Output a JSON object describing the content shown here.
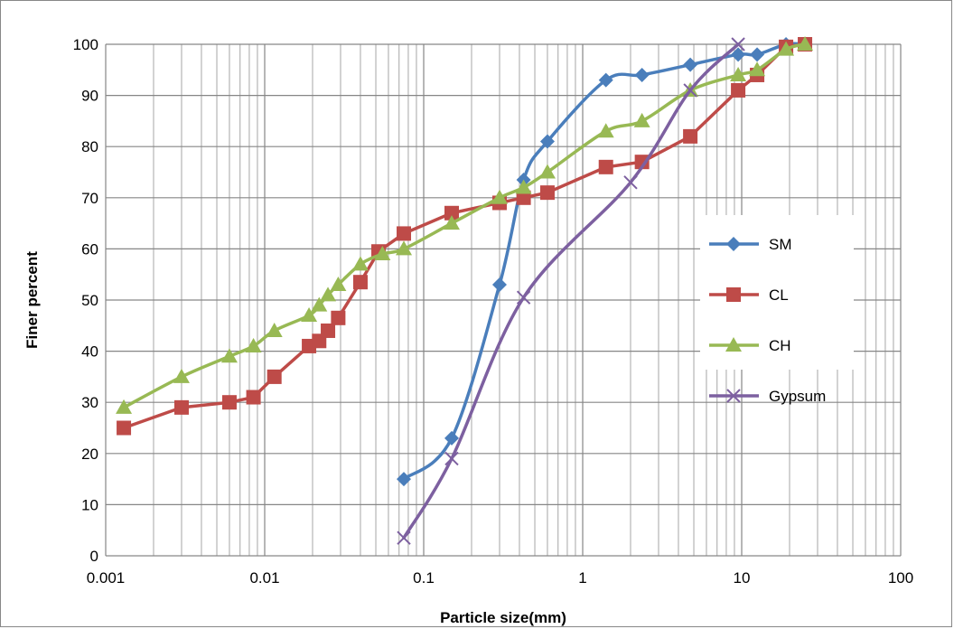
{
  "chart_data": {
    "type": "line",
    "x_scale": "log",
    "xlim": [
      0.001,
      100
    ],
    "ylim": [
      0,
      100
    ],
    "x_ticks": [
      0.001,
      0.01,
      0.1,
      1,
      10,
      100
    ],
    "x_tick_labels": [
      "0.001",
      "0.01",
      "0.1",
      "1",
      "10",
      "100"
    ],
    "y_ticks": [
      0,
      10,
      20,
      30,
      40,
      50,
      60,
      70,
      80,
      90,
      100
    ],
    "y_tick_labels": [
      "0",
      "10",
      "20",
      "30",
      "40",
      "50",
      "60",
      "70",
      "80",
      "90",
      "100"
    ],
    "xlabel": "Particle size(mm)",
    "ylabel": "Finer percent",
    "grid": true,
    "legend_position": "right",
    "series": [
      {
        "name": "SM",
        "color": "#4a7ebb",
        "marker": "diamond",
        "x": [
          0.075,
          0.15,
          0.3,
          0.425,
          0.6,
          1.4,
          2.36,
          4.75,
          9.5,
          12.5,
          19,
          25
        ],
        "y": [
          15,
          23,
          53,
          73.5,
          81,
          93,
          94,
          96,
          98,
          98,
          100,
          100
        ]
      },
      {
        "name": "CL",
        "color": "#be4b48",
        "marker": "square",
        "x": [
          0.0013,
          0.003,
          0.006,
          0.0085,
          0.0115,
          0.019,
          0.022,
          0.025,
          0.029,
          0.04,
          0.052,
          0.075,
          0.15,
          0.3,
          0.425,
          0.6,
          1.4,
          2.36,
          4.75,
          9.5,
          12.5,
          19,
          25
        ],
        "y": [
          25,
          29,
          30,
          31,
          35,
          41,
          42,
          44,
          46.5,
          53.5,
          59.5,
          63,
          67,
          69,
          70,
          71,
          76,
          77,
          82,
          91,
          94,
          99.5,
          100
        ],
        "smooth": false
      },
      {
        "name": "CH",
        "color": "#98b954",
        "marker": "triangle",
        "x": [
          0.0013,
          0.003,
          0.006,
          0.0085,
          0.0115,
          0.019,
          0.022,
          0.025,
          0.029,
          0.04,
          0.055,
          0.075,
          0.15,
          0.3,
          0.425,
          0.6,
          1.4,
          2.36,
          4.75,
          9.5,
          12.5,
          19,
          25
        ],
        "y": [
          29,
          35,
          39,
          41,
          44,
          47,
          49,
          51,
          53,
          57,
          59,
          60,
          65,
          70,
          72,
          75,
          83,
          85,
          91,
          94,
          95,
          99,
          100
        ]
      },
      {
        "name": "Gypsum",
        "color": "#7d60a0",
        "marker": "x",
        "x": [
          0.075,
          0.15,
          0.425,
          2.0,
          4.75,
          9.5
        ],
        "y": [
          3.5,
          19,
          50.5,
          73,
          91,
          100
        ]
      }
    ]
  }
}
